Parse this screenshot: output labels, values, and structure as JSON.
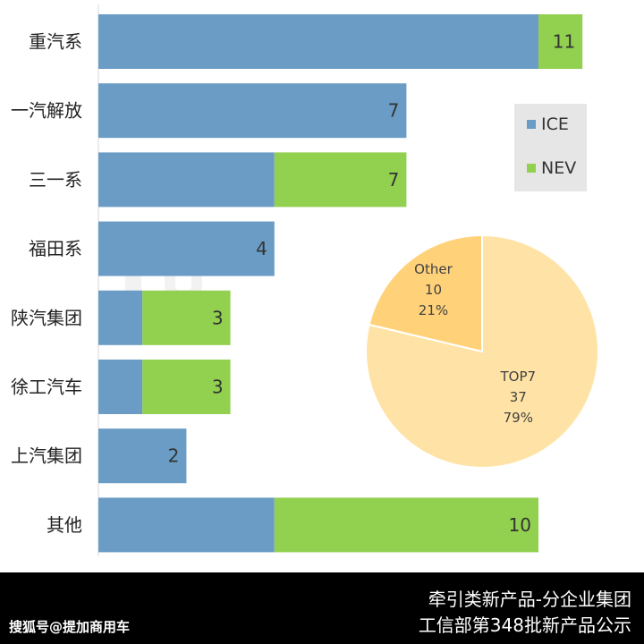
{
  "chart_data": [
    {
      "type": "bar",
      "orientation": "horizontal",
      "stacked": true,
      "categories": [
        "重汽系",
        "一汽解放",
        "三一系",
        "福田系",
        "陕汽集团",
        "徐工汽车",
        "上汽集团",
        "其他"
      ],
      "series": [
        {
          "name": "ICE",
          "values": [
            10,
            7,
            4,
            4,
            1,
            1,
            2,
            4
          ],
          "color": "#6a9cc5"
        },
        {
          "name": "NEV",
          "values": [
            1,
            0,
            3,
            0,
            2,
            2,
            0,
            6
          ],
          "color": "#92d050"
        }
      ],
      "totals": [
        "11",
        "7",
        "7",
        "4",
        "3",
        "3",
        "2",
        "10"
      ],
      "xlim": [
        0,
        11
      ],
      "grid": false,
      "legend_position": "right"
    },
    {
      "type": "pie",
      "slices": [
        {
          "label": "TOP7",
          "value": 37,
          "value_text": "37",
          "percent_text": "79%",
          "color": "#ffe3a6"
        },
        {
          "label": "Other",
          "value": 10,
          "value_text": "10",
          "percent_text": "21%",
          "color": "#ffd27a"
        }
      ]
    }
  ],
  "legend": {
    "items": [
      {
        "label": "ICE",
        "color": "#6a9cc5"
      },
      {
        "label": "NEV",
        "color": "#92d050"
      }
    ]
  },
  "footer": {
    "line1": "牵引类新产品-分企业集团",
    "line2": "工信部第348批新产品公示",
    "credit": "搜狐号@提加商用车"
  }
}
